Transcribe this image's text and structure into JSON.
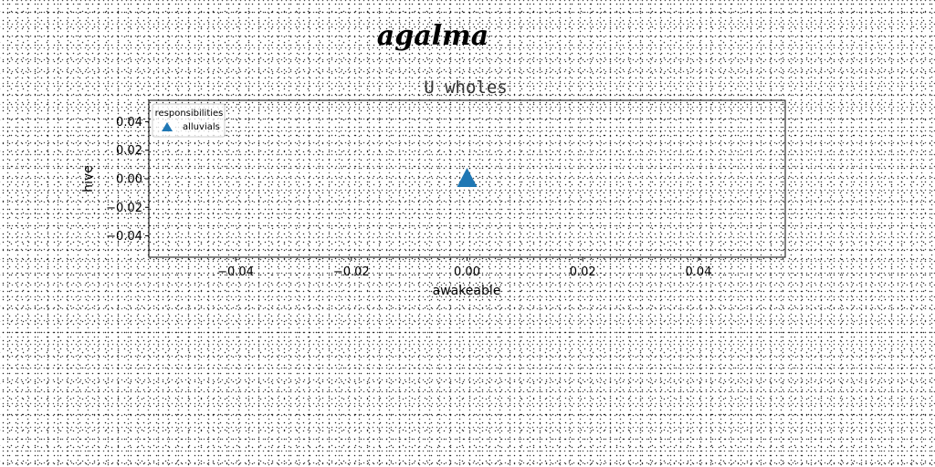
{
  "figure": {
    "suptitle": "agalma"
  },
  "chart_data": {
    "type": "scatter",
    "title": "U wholes",
    "xlabel": "awakeable",
    "ylabel": "hive",
    "xlim": [
      -0.055,
      0.055
    ],
    "ylim": [
      -0.055,
      0.055
    ],
    "xticks": [
      -0.04,
      -0.02,
      0.0,
      0.02,
      0.04
    ],
    "yticks": [
      -0.04,
      -0.02,
      0.0,
      0.02,
      0.04
    ],
    "xtick_labels": [
      "−0.04",
      "−0.02",
      "0.00",
      "0.02",
      "0.04"
    ],
    "ytick_labels": [
      "−0.04",
      "−0.02",
      "0.00",
      "0.02",
      "0.04"
    ],
    "grid": false,
    "legend": {
      "title": "responsibilities",
      "placement": "top-left"
    },
    "series": [
      {
        "name": "alluvials",
        "marker": "triangle-up",
        "color": "#1f77b4",
        "points": [
          {
            "x": 0.0,
            "y": 0.0
          }
        ]
      }
    ]
  }
}
